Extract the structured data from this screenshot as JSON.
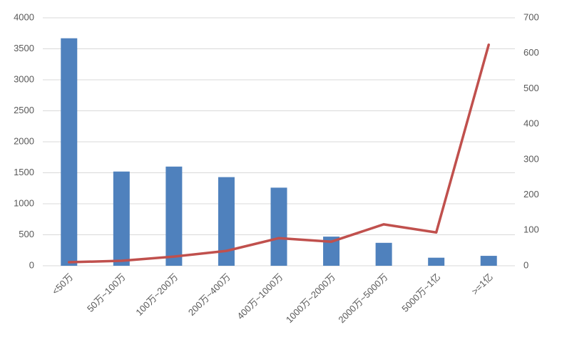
{
  "chart_data": {
    "type": "bar_line",
    "categories": [
      "<50万",
      "50万~100万",
      "100万~200万",
      "200万~400万",
      "400万~1000万",
      "1000万~2000万",
      "2000万~5000万",
      "5000万~1亿",
      ">=1亿"
    ],
    "series": [
      {
        "type": "bar",
        "color": "#4f81bd",
        "values": [
          3670,
          1520,
          1600,
          1430,
          1260,
          470,
          370,
          130,
          160
        ]
      },
      {
        "type": "line",
        "axis": "y2",
        "color": "#c0504d",
        "values": [
          10,
          14,
          26,
          42,
          78,
          68,
          117,
          94,
          624
        ]
      }
    ],
    "ylim": [
      0,
      4000
    ],
    "yticks": [
      0,
      500,
      1000,
      1500,
      2000,
      2500,
      3000,
      3500,
      4000
    ],
    "y2lim": [
      0,
      700
    ],
    "y2ticks": [
      0,
      100,
      200,
      300,
      400,
      500,
      600,
      700
    ],
    "grid": true
  }
}
